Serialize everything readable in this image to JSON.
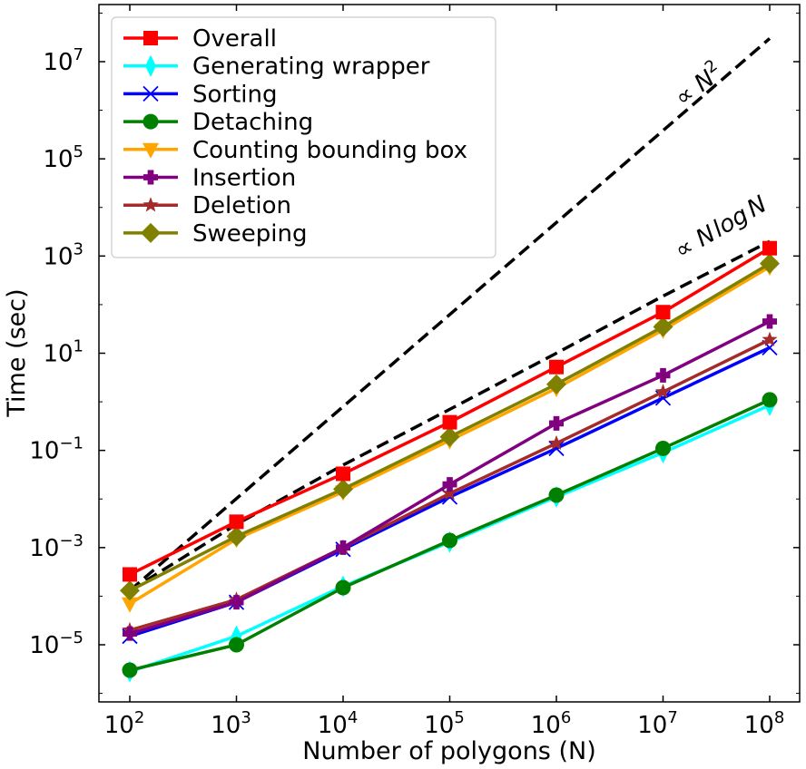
{
  "chart_data": {
    "type": "line",
    "xscale": "log",
    "yscale": "log",
    "xlabel": "Number of polygons (N)",
    "ylabel": "Time (sec)",
    "xlim": [
      100,
      100000000
    ],
    "ylim": [
      3e-07,
      200000000
    ],
    "x": [
      100,
      1000,
      10000,
      100000,
      1000000,
      10000000,
      100000000
    ],
    "x_ticks": [
      {
        "value": 100,
        "base": "10",
        "exp": "2"
      },
      {
        "value": 1000,
        "base": "10",
        "exp": "3"
      },
      {
        "value": 10000,
        "base": "10",
        "exp": "4"
      },
      {
        "value": 100000,
        "base": "10",
        "exp": "5"
      },
      {
        "value": 1000000,
        "base": "10",
        "exp": "6"
      },
      {
        "value": 10000000,
        "base": "10",
        "exp": "7"
      },
      {
        "value": 100000000,
        "base": "10",
        "exp": "8"
      }
    ],
    "y_ticks": [
      {
        "value": 1e-05,
        "base": "10",
        "exp": "−5"
      },
      {
        "value": 0.001,
        "base": "10",
        "exp": "−3"
      },
      {
        "value": 0.1,
        "base": "10",
        "exp": "−1"
      },
      {
        "value": 10,
        "base": "10",
        "exp": "1"
      },
      {
        "value": 1000,
        "base": "10",
        "exp": "3"
      },
      {
        "value": 100000,
        "base": "10",
        "exp": "5"
      },
      {
        "value": 10000000,
        "base": "10",
        "exp": "7"
      }
    ],
    "legend_position": "top-left",
    "series": [
      {
        "name": "Overall",
        "color": "#ff0000",
        "marker": "square",
        "values": [
          0.00028,
          0.0034,
          0.033,
          0.38,
          5.2,
          70,
          1450
        ]
      },
      {
        "name": "Generating wrapper",
        "color": "#00ffff",
        "marker": "thin-diamond",
        "values": [
          2.8e-06,
          1.5e-05,
          0.00016,
          0.0013,
          0.011,
          0.09,
          0.85
        ]
      },
      {
        "name": "Sorting",
        "color": "#0000ff",
        "marker": "x",
        "values": [
          1.5e-05,
          7.5e-05,
          0.00092,
          0.011,
          0.11,
          1.2,
          13
        ]
      },
      {
        "name": "Detaching",
        "color": "#008000",
        "marker": "circle",
        "values": [
          3e-06,
          1e-05,
          0.00015,
          0.0014,
          0.012,
          0.11,
          1.1
        ]
      },
      {
        "name": "Counting bounding box",
        "color": "#ffa500",
        "marker": "triangle-down",
        "values": [
          7e-05,
          0.0015,
          0.014,
          0.16,
          1.9,
          30,
          600
        ]
      },
      {
        "name": "Insertion",
        "color": "#800080",
        "marker": "plus-filled",
        "values": [
          1.7e-05,
          7.5e-05,
          0.001,
          0.02,
          0.36,
          3.5,
          45
        ]
      },
      {
        "name": "Deletion",
        "color": "#a52a2a",
        "marker": "star",
        "values": [
          2e-05,
          8.5e-05,
          0.001,
          0.013,
          0.14,
          1.6,
          19
        ]
      },
      {
        "name": "Sweeping",
        "color": "#808000",
        "marker": "diamond",
        "values": [
          0.00013,
          0.0017,
          0.016,
          0.19,
          2.3,
          35,
          700
        ]
      }
    ],
    "reference_lines": [
      {
        "label_base": "∝ ",
        "label_var": "N",
        "label_exp": "2",
        "values_at_x": [
          0.00013,
          30000000
        ],
        "x_range": [
          100,
          100000000
        ]
      },
      {
        "label_base": "∝ ",
        "label_var": "N",
        "label_mid": "log",
        "label_var2": "N",
        "values_at_x": [
          0.00013,
          0.003,
          0.05,
          0.7,
          10,
          150,
          2000
        ],
        "x_range": [
          100,
          100000000
        ]
      }
    ]
  }
}
